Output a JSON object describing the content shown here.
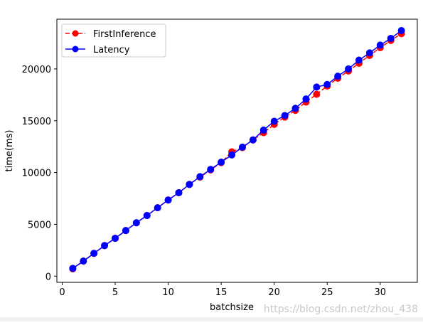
{
  "chart_data": {
    "type": "line",
    "title": "",
    "xlabel": "batchsize",
    "ylabel": "time(ms)",
    "xlim": [
      -0.5,
      33.5
    ],
    "ylim": [
      -600,
      24800
    ],
    "xticks": [
      0,
      5,
      10,
      15,
      20,
      25,
      30
    ],
    "yticks": [
      0,
      5000,
      10000,
      15000,
      20000
    ],
    "grid": false,
    "legend_position": "top-left",
    "x": [
      1,
      2,
      3,
      4,
      5,
      6,
      7,
      8,
      9,
      10,
      11,
      12,
      13,
      14,
      15,
      16,
      17,
      18,
      19,
      20,
      21,
      22,
      23,
      24,
      25,
      26,
      27,
      28,
      29,
      30,
      31,
      32
    ],
    "series": [
      {
        "name": "FirstInference",
        "color": "#ff0000",
        "line_style": "dashed",
        "marker": "circle",
        "values": [
          700,
          1450,
          2200,
          2950,
          3650,
          4400,
          5150,
          5850,
          6600,
          7350,
          8050,
          8850,
          9550,
          10250,
          10950,
          12000,
          12400,
          13150,
          13850,
          14650,
          15350,
          16000,
          16800,
          17550,
          18350,
          19100,
          19800,
          20550,
          21300,
          22050,
          22750,
          23400
        ]
      },
      {
        "name": "Latency",
        "color": "#0000ff",
        "line_style": "solid",
        "marker": "circle",
        "values": [
          750,
          1450,
          2200,
          2950,
          3650,
          4400,
          5150,
          5850,
          6600,
          7350,
          8050,
          8850,
          9600,
          10300,
          11000,
          11700,
          12450,
          13150,
          14100,
          14950,
          15500,
          16200,
          17100,
          18250,
          18500,
          19300,
          20000,
          20850,
          21550,
          22300,
          22950,
          23700
        ]
      }
    ]
  },
  "watermark": "https://blog.csdn.net/zhou_438"
}
